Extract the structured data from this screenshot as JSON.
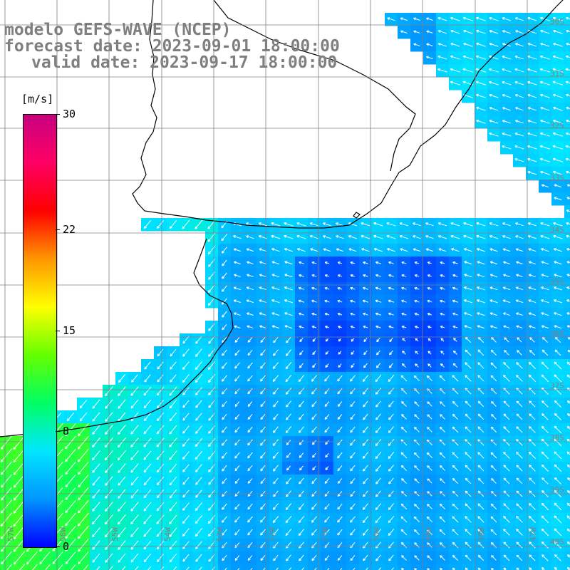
{
  "title": {
    "line1": "modelo GEFS-WAVE (NCEP)",
    "line2": "forecast date: 2023-09-01 18:00:00",
    "line3": "valid date: 2023-09-17 18:00:00"
  },
  "colorbar": {
    "unit": "[m/s]",
    "ticks": [
      "30",
      "22",
      "15",
      "8",
      "0"
    ],
    "tick_values": [
      30,
      22,
      15,
      8,
      0
    ],
    "range": [
      0,
      30
    ],
    "colors": [
      "#0000ff",
      "#0096ff",
      "#00e6ff",
      "#00ff64",
      "#64ff00",
      "#ffff00",
      "#ff9600",
      "#ff0000",
      "#ff0064",
      "#c8007f"
    ]
  },
  "map": {
    "variable": "wind speed and direction",
    "land_color": "#ffffff",
    "coastline_color": "#000000",
    "grid_color": "#808080",
    "arrow_color": "#ffffff",
    "lon_labels": [
      "57W",
      "56W",
      "55W",
      "54W",
      "53W",
      "52W",
      "51W",
      "50W",
      "49W",
      "48W",
      "47W"
    ],
    "lat_labels": [
      "30S",
      "31S",
      "32S",
      "33S",
      "34S",
      "35S",
      "36S",
      "37S",
      "38S",
      "39S",
      "40S",
      "41S"
    ]
  }
}
